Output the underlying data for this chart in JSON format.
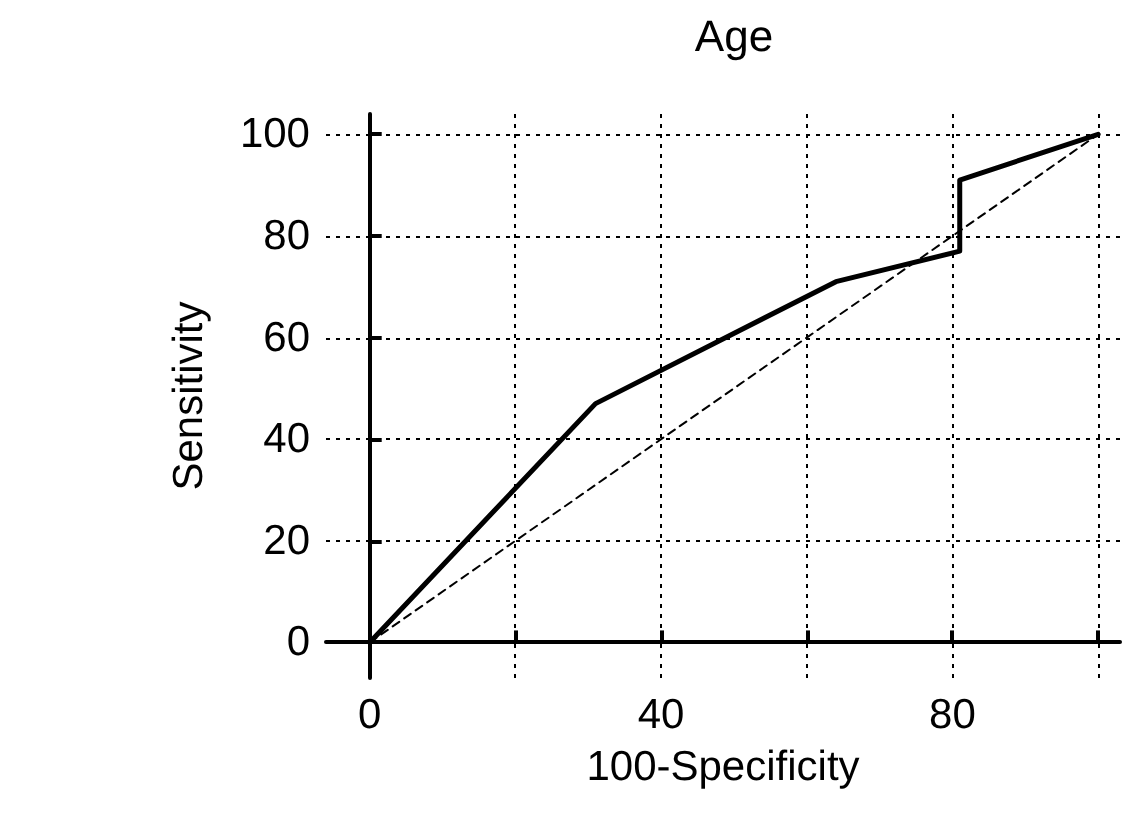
{
  "chart_data": {
    "type": "line",
    "title": "Age",
    "xlabel": "100-Specificity",
    "ylabel": "Sensitivity",
    "xlim": [
      -6,
      103
    ],
    "ylim": [
      -7,
      104
    ],
    "xticks": [
      {
        "value": 0,
        "label": "0"
      },
      {
        "value": 20,
        "label": null
      },
      {
        "value": 40,
        "label": "40"
      },
      {
        "value": 60,
        "label": null
      },
      {
        "value": 80,
        "label": "80"
      },
      {
        "value": 100,
        "label": null
      }
    ],
    "yticks": [
      0,
      20,
      40,
      60,
      80,
      100
    ],
    "grid": true,
    "marker": "none",
    "series": [
      {
        "color": "#000000",
        "line_style": "solid",
        "x": [
          0,
          31,
          64,
          81,
          81,
          100
        ],
        "values": [
          0,
          47,
          71,
          77,
          91,
          100
        ]
      },
      {
        "color": "#000000",
        "line_style": "dashed",
        "x": [
          0,
          100
        ],
        "values": [
          0,
          100
        ]
      }
    ]
  }
}
